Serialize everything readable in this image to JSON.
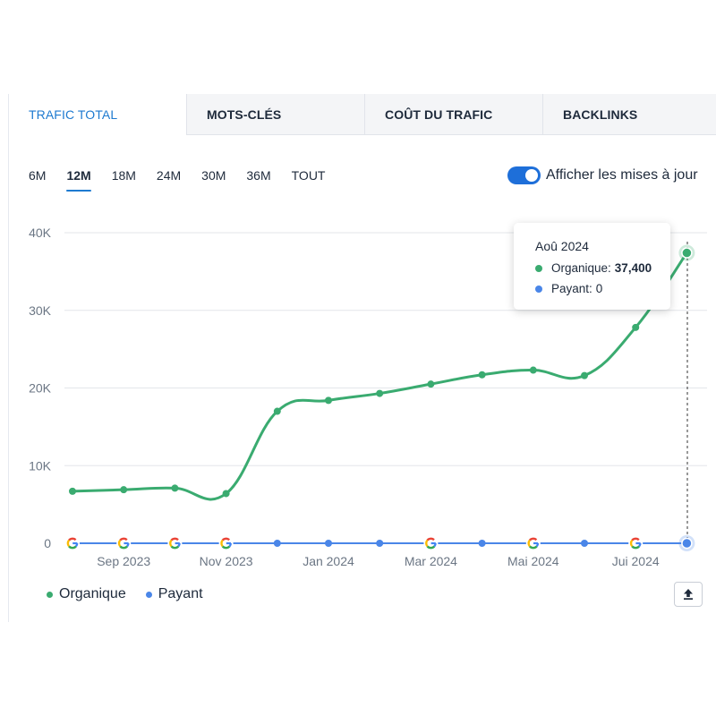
{
  "tabs": [
    {
      "label": "TRAFIC TOTAL",
      "active": true
    },
    {
      "label": "MOTS-CLÉS",
      "active": false
    },
    {
      "label": "COÛT DU TRAFIC",
      "active": false
    },
    {
      "label": "BACKLINKS",
      "active": false
    }
  ],
  "periods": [
    {
      "label": "6M",
      "active": false
    },
    {
      "label": "12M",
      "active": true
    },
    {
      "label": "18M",
      "active": false
    },
    {
      "label": "24M",
      "active": false
    },
    {
      "label": "30M",
      "active": false
    },
    {
      "label": "36M",
      "active": false
    },
    {
      "label": "TOUT",
      "active": false
    }
  ],
  "toggle": {
    "label": "Afficher les mises à jour",
    "on": true
  },
  "tooltip": {
    "title": "Aoû 2024",
    "organic_label": "Organique:",
    "organic_value": "37,400",
    "paid_label": "Payant:",
    "paid_value": "0"
  },
  "legend": {
    "organic": "Organique",
    "paid": "Payant"
  },
  "colors": {
    "organic": "#3aab70",
    "paid": "#4a86e8",
    "accent": "#1e7ad0"
  },
  "icons": {
    "export": "upload-icon",
    "update_marker": "google-icon"
  },
  "chart_data": {
    "type": "line",
    "y_ticks": [
      "0",
      "10K",
      "20K",
      "30K",
      "40K"
    ],
    "ylim": [
      0,
      40000
    ],
    "x_tick_labels": [
      "Sep 2023",
      "Nov 2023",
      "Jan 2024",
      "Mar 2024",
      "Mai 2024",
      "Jui 2024"
    ],
    "x_tick_index": [
      1,
      3,
      5,
      7,
      9,
      11
    ],
    "grid": true,
    "series": [
      {
        "name": "Organique",
        "values": [
          6700,
          6900,
          7100,
          6400,
          17000,
          18400,
          19300,
          20500,
          21700,
          22300,
          21600,
          27800,
          37400
        ]
      },
      {
        "name": "Payant",
        "values": [
          0,
          0,
          0,
          0,
          0,
          0,
          0,
          0,
          0,
          0,
          0,
          0,
          0
        ]
      }
    ],
    "update_markers": [
      0,
      1,
      2,
      3,
      7,
      9,
      11
    ]
  }
}
